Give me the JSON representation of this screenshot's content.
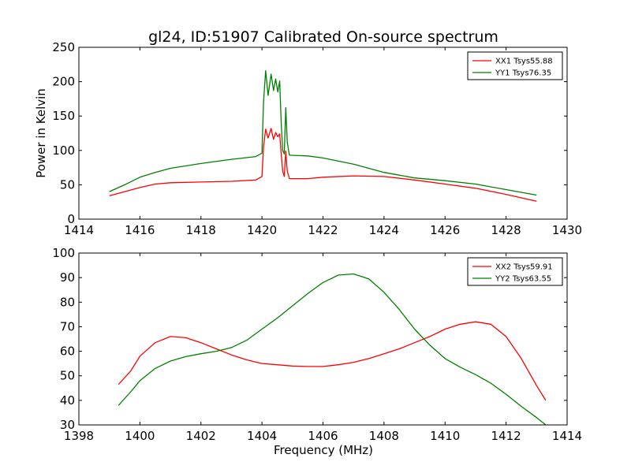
{
  "chart_data": [
    {
      "type": "line",
      "title": "gl24, ID:51907 Calibrated On-source spectrum",
      "xlabel": "",
      "ylabel": "Power in Kelvin",
      "xlim": [
        1414,
        1430
      ],
      "ylim": [
        0,
        250
      ],
      "xticks": [
        1414,
        1416,
        1418,
        1420,
        1422,
        1424,
        1426,
        1428,
        1430
      ],
      "yticks": [
        0,
        50,
        100,
        150,
        200,
        250
      ],
      "grid": false,
      "legend": "top-right",
      "series": [
        {
          "name": "XX1 Tsys55.88",
          "color": "#ff0000",
          "x": [
            1415.0,
            1415.5,
            1416.0,
            1416.5,
            1417.0,
            1418.0,
            1419.0,
            1419.8,
            1420.0,
            1420.05,
            1420.12,
            1420.2,
            1420.3,
            1420.38,
            1420.45,
            1420.52,
            1420.58,
            1420.63,
            1420.68,
            1420.73,
            1420.78,
            1420.83,
            1420.9,
            1421.5,
            1422.0,
            1423.0,
            1424.0,
            1425.0,
            1426.0,
            1427.0,
            1428.0,
            1429.0
          ],
          "y": [
            34,
            40,
            46,
            51,
            53,
            54,
            55,
            57,
            62,
            105,
            131,
            118,
            132,
            116,
            126,
            120,
            124,
            95,
            70,
            62,
            99,
            70,
            59,
            59,
            61,
            63,
            62,
            57,
            51,
            45,
            36,
            26
          ]
        },
        {
          "name": "YY1 Tsys76.35",
          "color": "#008000",
          "x": [
            1415.0,
            1415.5,
            1416.0,
            1416.5,
            1417.0,
            1418.0,
            1419.0,
            1419.8,
            1420.0,
            1420.05,
            1420.12,
            1420.2,
            1420.3,
            1420.38,
            1420.45,
            1420.52,
            1420.58,
            1420.63,
            1420.68,
            1420.73,
            1420.78,
            1420.83,
            1420.9,
            1421.5,
            1422.0,
            1423.0,
            1424.0,
            1425.0,
            1426.0,
            1427.0,
            1428.0,
            1429.0
          ],
          "y": [
            40,
            50,
            61,
            68,
            74,
            81,
            87,
            91,
            96,
            170,
            216,
            180,
            211,
            187,
            204,
            185,
            201,
            140,
            100,
            95,
            162,
            112,
            93,
            92,
            89,
            80,
            68,
            60,
            56,
            51,
            43,
            35
          ]
        }
      ]
    },
    {
      "type": "line",
      "title": "",
      "xlabel": "Frequency (MHz)",
      "ylabel": "",
      "xlim": [
        1398,
        1414
      ],
      "ylim": [
        30,
        100
      ],
      "xticks": [
        1398,
        1400,
        1402,
        1404,
        1406,
        1408,
        1410,
        1412,
        1414
      ],
      "yticks": [
        30,
        40,
        50,
        60,
        70,
        80,
        90,
        100
      ],
      "grid": false,
      "legend": "top-right",
      "series": [
        {
          "name": "XX2 Tsys59.91",
          "color": "#ff0000",
          "x": [
            1399.3,
            1399.7,
            1400.0,
            1400.5,
            1401.0,
            1401.5,
            1402.0,
            1402.5,
            1403.0,
            1403.5,
            1404.0,
            1404.5,
            1405.0,
            1405.5,
            1406.0,
            1406.5,
            1407.0,
            1407.5,
            1408.0,
            1408.5,
            1409.0,
            1409.5,
            1410.0,
            1410.5,
            1411.0,
            1411.5,
            1412.0,
            1412.5,
            1413.0,
            1413.3
          ],
          "y": [
            46.5,
            52,
            58,
            63.5,
            66,
            65.5,
            63.5,
            61,
            58.5,
            56.5,
            55,
            54.5,
            54,
            53.8,
            53.8,
            54.5,
            55.5,
            57,
            59,
            61,
            63.5,
            66,
            69,
            71,
            72,
            71,
            66,
            57,
            46,
            40
          ]
        },
        {
          "name": "YY2 Tsys63.55",
          "color": "#008000",
          "x": [
            1399.3,
            1399.7,
            1400.0,
            1400.5,
            1401.0,
            1401.5,
            1402.0,
            1402.5,
            1403.0,
            1403.5,
            1404.0,
            1404.5,
            1405.0,
            1405.5,
            1406.0,
            1406.5,
            1407.0,
            1407.5,
            1408.0,
            1408.5,
            1409.0,
            1409.5,
            1410.0,
            1410.5,
            1411.0,
            1411.5,
            1412.0,
            1412.5,
            1413.0,
            1413.3
          ],
          "y": [
            38,
            43.5,
            48,
            53,
            56,
            57.8,
            59,
            60,
            61.5,
            64.5,
            69,
            73.5,
            78.5,
            83.5,
            88,
            91,
            91.5,
            89.5,
            84,
            77,
            69,
            62.5,
            57,
            53.5,
            50.5,
            47,
            42.5,
            37.5,
            33,
            30
          ]
        }
      ]
    }
  ]
}
